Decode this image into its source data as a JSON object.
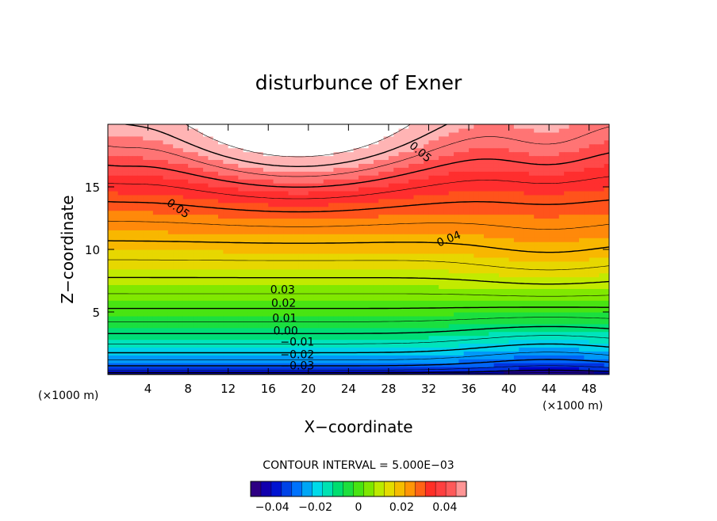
{
  "chart_data": {
    "type": "heatmap",
    "title": "disturbunce of Exner",
    "xlabel": "X−coordinate",
    "ylabel": "Z−coordinate",
    "x_unit": "(×1000 m)",
    "z_unit": "(×1000 m)",
    "xlim": [
      0,
      50
    ],
    "ylim": [
      0,
      20
    ],
    "xticks": [
      4,
      8,
      12,
      16,
      20,
      24,
      28,
      32,
      36,
      40,
      44,
      48
    ],
    "yticks": [
      5,
      10,
      15
    ],
    "contour_interval_text": "CONTOUR INTERVAL = 5.000E−03",
    "contour_interval": 0.005,
    "colorbar": {
      "min": -0.05,
      "max": 0.05,
      "ticks": [
        -0.04,
        -0.02,
        0,
        0.02,
        0.04
      ],
      "tick_labels": [
        "−0.04",
        "−0.02",
        "0",
        "0.02",
        "0.04"
      ]
    },
    "contour_labels": [
      {
        "text": "0.05",
        "x": 5.8,
        "z": 13.6,
        "angle": 35
      },
      {
        "text": "0.05",
        "x": 30.0,
        "z": 18.2,
        "angle": 40
      },
      {
        "text": "0.04",
        "x": 33.0,
        "z": 10.2,
        "angle": -22
      },
      {
        "text": "0.03",
        "x": 16.2,
        "z": 6.5,
        "angle": 0
      },
      {
        "text": "0.02",
        "x": 16.3,
        "z": 5.4,
        "angle": 0
      },
      {
        "text": "0.01",
        "x": 16.4,
        "z": 4.2,
        "angle": 0
      },
      {
        "text": "0.00",
        "x": 16.5,
        "z": 3.2,
        "angle": 0
      },
      {
        "text": "−0.01",
        "x": 17.2,
        "z": 2.3,
        "angle": 0
      },
      {
        "text": "−0.02",
        "x": 17.2,
        "z": 1.3,
        "angle": 0
      },
      {
        "text": "−0.03",
        "x": 17.2,
        "z": 0.4,
        "angle": 0
      }
    ],
    "field": {
      "description_ignored": false,
      "max_region_note": "white area exceeds 0.055",
      "zmax_value_top_center": 0.058,
      "value_at_ground": -0.045
    }
  }
}
